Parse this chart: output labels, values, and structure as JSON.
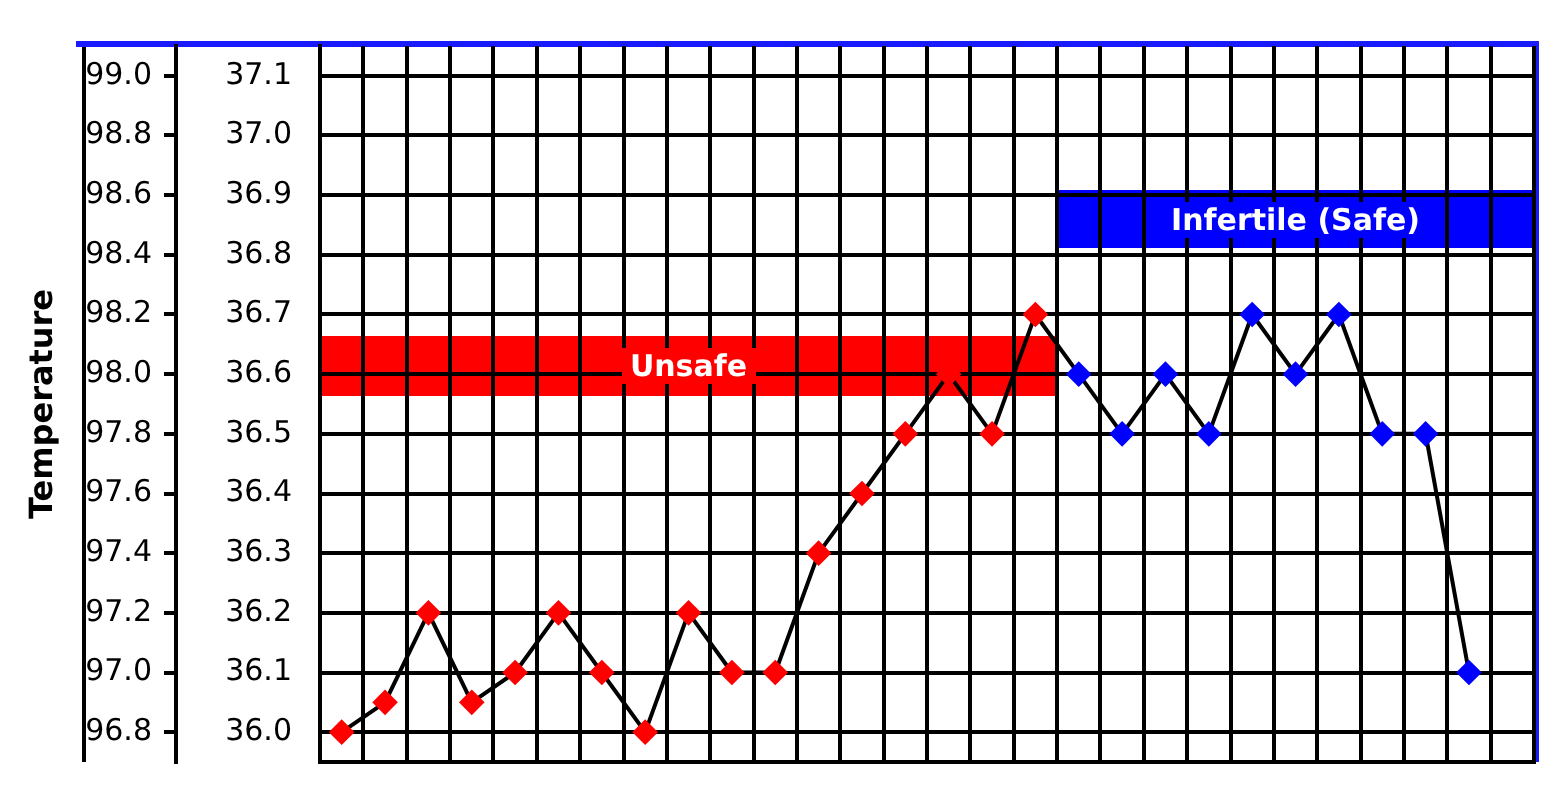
{
  "chart_data": {
    "type": "line",
    "ylabel": "Temperature",
    "categories": [
      null,
      null,
      null,
      null,
      null,
      null,
      null,
      null,
      null,
      null,
      null,
      null,
      null,
      null,
      null,
      null,
      null,
      null,
      null,
      null,
      null,
      null,
      null,
      null,
      null,
      null,
      null,
      null
    ],
    "series": [
      {
        "color": "#000000",
        "values": [
          96.8,
          96.9,
          97.2,
          96.9,
          97.0,
          97.2,
          97.0,
          96.8,
          97.2,
          97.0,
          97.0,
          97.4,
          97.6,
          97.8,
          98.0,
          97.8,
          98.2,
          98.0,
          97.8,
          98.0,
          97.8,
          98.2,
          98.0,
          98.2,
          97.8,
          97.8,
          97.0,
          null
        ],
        "colors": [
          "#ff0000",
          "#ff0000",
          "#ff0000",
          "#ff0000",
          "#ff0000",
          "#ff0000",
          "#ff0000",
          "#ff0000",
          "#ff0000",
          "#ff0000",
          "#ff0000",
          "#ff0000",
          "#ff0000",
          "#ff0000",
          "#ff0000",
          "#ff0000",
          "#ff0000",
          "#0000ff",
          "#0000ff",
          "#0000ff",
          "#0000ff",
          "#0000ff",
          "#0000ff",
          "#0000ff",
          "#0000ff",
          "#0000ff",
          "#0000ff",
          null
        ]
      }
    ],
    "ylim": [
      96.7,
      99.1
    ],
    "yticks": [
      96.8,
      {
        "value": 97,
        "label": "97.0"
      },
      97.2,
      97.4,
      97.6,
      97.8,
      {
        "value": 98,
        "label": "98.0"
      },
      98.2,
      98.4,
      98.6,
      98.8,
      {
        "value": 99,
        "label": "99.0"
      }
    ],
    "y2lim": [
      35.95,
      37.15
    ],
    "y2ticks": [
      {
        "value": 36,
        "label": "36.0"
      },
      36.1,
      36.2,
      36.3,
      36.4,
      36.5,
      36.6,
      36.7,
      36.8,
      36.9,
      {
        "value": 37,
        "label": "37.0"
      },
      37.1
    ],
    "annotations": [
      "Unsafe",
      "Infertile (Safe)"
    ],
    "grid": true,
    "tick_labels": "y",
    "marker": "diamond",
    "line_style": "solid"
  }
}
